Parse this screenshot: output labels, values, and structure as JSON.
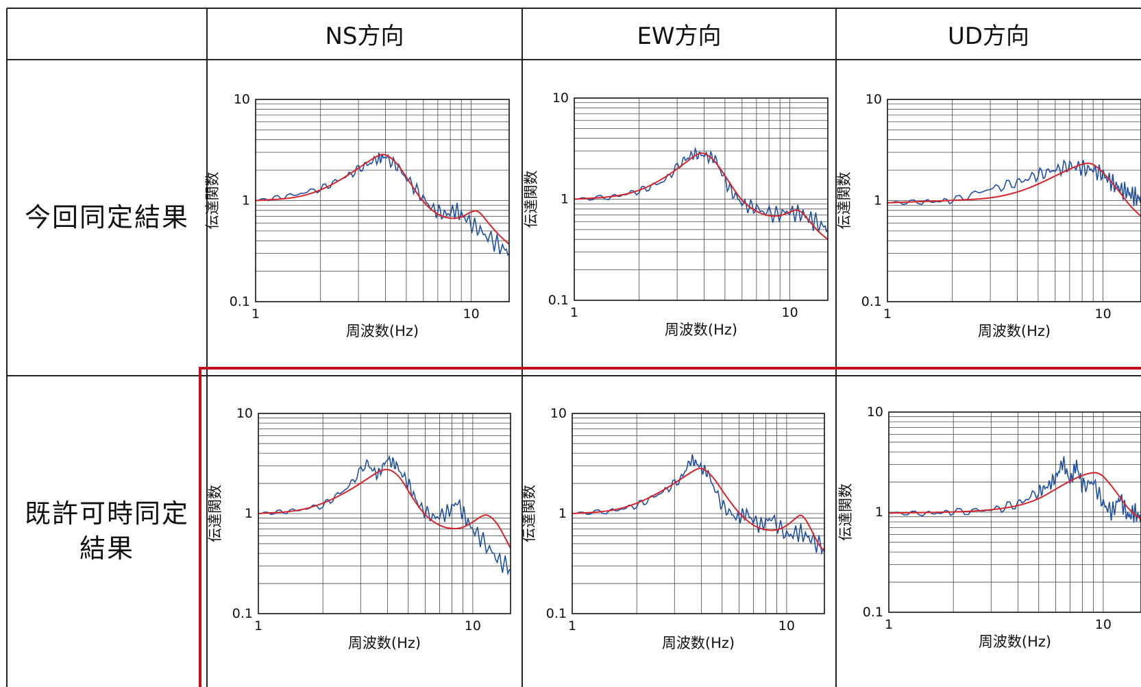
{
  "table": {
    "headers": [
      "NS方向",
      "EW方向",
      "UD方向"
    ],
    "rows": [
      {
        "label": [
          "今回同定結果"
        ]
      },
      {
        "label": [
          "既許可時同定",
          "結果"
        ]
      }
    ]
  },
  "colors": {
    "observed": "#1f4fa0",
    "fitted": "#d8232a",
    "highlight": "#c0111f",
    "grid": "#444444"
  },
  "chart_data": [
    {
      "type": "line",
      "row": "今回同定結果",
      "col": "NS方向",
      "xlabel": "周波数(Hz)",
      "ylabel": "伝達関数",
      "xscale": "log",
      "yscale": "log",
      "xlim": [
        1,
        15
      ],
      "ylim": [
        0.1,
        10
      ],
      "xticks": [
        "1",
        "10"
      ],
      "yticks": [
        "10",
        "1",
        "0.1"
      ],
      "grid": true,
      "legend": "none",
      "series": [
        {
          "x": [
            1,
            1.4,
            2,
            2.6,
            3.2,
            3.7,
            4.0,
            4.6,
            5.5,
            6.5,
            7.5,
            8.5,
            9.5,
            11,
            13,
            15
          ],
          "y": [
            1,
            1.1,
            1.3,
            1.7,
            2.2,
            2.6,
            2.7,
            2.1,
            1.3,
            0.85,
            0.72,
            0.8,
            0.65,
            0.5,
            0.38,
            0.3
          ]
        },
        {
          "x": [
            1,
            1.5,
            2,
            2.6,
            3.2,
            3.7,
            4.0,
            4.5,
            5.2,
            6,
            7,
            8,
            9,
            10,
            10.8,
            12,
            13.5,
            15
          ],
          "y": [
            1,
            1.05,
            1.25,
            1.7,
            2.3,
            2.8,
            2.9,
            2.4,
            1.5,
            0.95,
            0.72,
            0.66,
            0.68,
            0.78,
            0.8,
            0.6,
            0.45,
            0.37
          ]
        }
      ]
    },
    {
      "type": "line",
      "row": "今回同定結果",
      "col": "EW方向",
      "xlabel": "周波数(Hz)",
      "ylabel": "伝達関数",
      "xscale": "log",
      "yscale": "log",
      "xlim": [
        1,
        15
      ],
      "ylim": [
        0.1,
        10
      ],
      "xticks": [
        "1",
        "10"
      ],
      "yticks": [
        "10",
        "1",
        "0.1"
      ],
      "grid": true,
      "legend": "none",
      "series": [
        {
          "x": [
            1,
            1.5,
            2,
            2.6,
            3.2,
            3.6,
            4.0,
            4.5,
            5.2,
            6,
            7,
            8.5,
            10,
            11.5,
            13,
            15
          ],
          "y": [
            1,
            1.05,
            1.2,
            1.5,
            2.4,
            2.8,
            2.7,
            2.5,
            1.3,
            0.9,
            0.8,
            0.7,
            0.75,
            0.7,
            0.6,
            0.5
          ]
        },
        {
          "x": [
            1,
            1.5,
            2,
            2.6,
            3.2,
            3.7,
            4.0,
            4.5,
            5.2,
            6,
            7,
            8,
            9,
            10,
            11,
            12,
            13.5,
            15
          ],
          "y": [
            1,
            1.05,
            1.2,
            1.6,
            2.2,
            2.8,
            2.9,
            2.4,
            1.5,
            0.95,
            0.75,
            0.68,
            0.68,
            0.75,
            0.8,
            0.65,
            0.48,
            0.4
          ]
        }
      ]
    },
    {
      "type": "line",
      "row": "今回同定結果",
      "col": "UD方向",
      "xlabel": "周波数(Hz)",
      "ylabel": "伝達関数",
      "xscale": "log",
      "yscale": "log",
      "xlim": [
        1,
        15
      ],
      "ylim": [
        0.1,
        10
      ],
      "xticks": [
        "1",
        "10"
      ],
      "yticks": [
        "10",
        "1",
        "0.1"
      ],
      "grid": true,
      "legend": "none",
      "series": [
        {
          "x": [
            1,
            1.5,
            2,
            3,
            4,
            5,
            6,
            7,
            8,
            9,
            10,
            11,
            12,
            13,
            14,
            15
          ],
          "y": [
            0.95,
            0.97,
            1.0,
            1.3,
            1.5,
            1.8,
            2.0,
            2.2,
            2.1,
            2.0,
            1.8,
            1.5,
            1.3,
            1.2,
            1.1,
            1.0
          ]
        },
        {
          "x": [
            1,
            2,
            3,
            4,
            5,
            6,
            7,
            8,
            8.5,
            9,
            10,
            11,
            12,
            13,
            14,
            15
          ],
          "y": [
            0.95,
            1.0,
            1.05,
            1.2,
            1.45,
            1.75,
            2.05,
            2.3,
            2.35,
            2.3,
            1.9,
            1.5,
            1.2,
            0.95,
            0.8,
            0.7
          ]
        }
      ]
    },
    {
      "type": "line",
      "row": "既許可時同定結果",
      "col": "NS方向",
      "xlabel": "周波数(Hz)",
      "ylabel": "伝達関数",
      "xscale": "log",
      "yscale": "log",
      "xlim": [
        1,
        15
      ],
      "ylim": [
        0.1,
        10
      ],
      "xticks": [
        "1",
        "10"
      ],
      "yticks": [
        "10",
        "1",
        "0.1"
      ],
      "grid": true,
      "legend": "none",
      "series": [
        {
          "x": [
            1,
            1.4,
            2,
            2.6,
            3.2,
            3.6,
            4.0,
            4.4,
            5,
            5.6,
            6.5,
            7.5,
            8.5,
            9.5,
            11,
            13,
            15
          ],
          "y": [
            1,
            1.05,
            1.2,
            1.8,
            3.2,
            2.4,
            3.5,
            3.0,
            2.0,
            1.2,
            0.9,
            1.0,
            1.3,
            0.8,
            0.55,
            0.35,
            0.28
          ]
        },
        {
          "x": [
            1,
            1.5,
            2,
            2.6,
            3.2,
            3.7,
            4.1,
            4.6,
            5.2,
            6,
            7,
            8,
            9,
            10,
            11,
            11.8,
            13,
            14,
            15
          ],
          "y": [
            1,
            1.05,
            1.25,
            1.65,
            2.2,
            2.7,
            2.8,
            2.3,
            1.45,
            0.95,
            0.75,
            0.7,
            0.72,
            0.82,
            0.95,
            0.98,
            0.8,
            0.6,
            0.45
          ]
        }
      ]
    },
    {
      "type": "line",
      "row": "既許可時同定結果",
      "col": "EW方向",
      "xlabel": "周波数(Hz)",
      "ylabel": "伝達関数",
      "xscale": "log",
      "yscale": "log",
      "xlim": [
        1,
        15
      ],
      "ylim": [
        0.1,
        10
      ],
      "xticks": [
        "1",
        "10"
      ],
      "yticks": [
        "10",
        "1",
        "0.1"
      ],
      "grid": true,
      "legend": "none",
      "series": [
        {
          "x": [
            1,
            1.5,
            2,
            2.6,
            3.2,
            3.6,
            3.9,
            4.3,
            5,
            5.8,
            6.5,
            7.5,
            8.5,
            10,
            11.5,
            13,
            15
          ],
          "y": [
            1,
            1.05,
            1.2,
            1.6,
            2.2,
            3.5,
            3.0,
            2.5,
            1.2,
            0.9,
            1.0,
            0.75,
            0.9,
            0.6,
            0.65,
            0.55,
            0.45
          ]
        },
        {
          "x": [
            1,
            1.5,
            2,
            2.6,
            3.2,
            3.7,
            4.0,
            4.5,
            5.2,
            6,
            7,
            8,
            9,
            10,
            11,
            11.8,
            13,
            14,
            15
          ],
          "y": [
            1,
            1.05,
            1.25,
            1.65,
            2.2,
            2.7,
            2.9,
            2.4,
            1.5,
            1.0,
            0.75,
            0.68,
            0.68,
            0.75,
            0.9,
            1.0,
            0.7,
            0.5,
            0.42
          ]
        }
      ]
    },
    {
      "type": "line",
      "row": "既許可時同定結果",
      "col": "UD方向",
      "xlabel": "周波数(Hz)",
      "ylabel": "伝達関数",
      "xscale": "log",
      "yscale": "log",
      "xlim": [
        1,
        15
      ],
      "ylim": [
        0.1,
        10
      ],
      "xticks": [
        "1",
        "10"
      ],
      "yticks": [
        "10",
        "1",
        "0.1"
      ],
      "grid": true,
      "legend": "none",
      "series": [
        {
          "x": [
            1,
            1.5,
            2,
            3,
            4,
            5,
            5.5,
            6,
            6.5,
            7,
            7.5,
            8,
            9,
            10,
            11,
            12,
            13,
            14,
            15
          ],
          "y": [
            0.98,
            0.97,
            1.0,
            1.05,
            1.2,
            1.6,
            1.8,
            2.2,
            3.2,
            2.0,
            3.0,
            1.8,
            2.0,
            1.2,
            1.0,
            1.4,
            0.9,
            1.0,
            0.85
          ]
        },
        {
          "x": [
            1,
            2,
            3,
            4,
            5,
            6,
            7,
            8,
            9,
            9.5,
            10,
            11,
            12,
            13,
            14,
            15
          ],
          "y": [
            0.98,
            1.0,
            1.05,
            1.15,
            1.35,
            1.7,
            2.05,
            2.35,
            2.5,
            2.45,
            2.3,
            1.8,
            1.4,
            1.1,
            0.95,
            0.85
          ]
        }
      ]
    }
  ]
}
